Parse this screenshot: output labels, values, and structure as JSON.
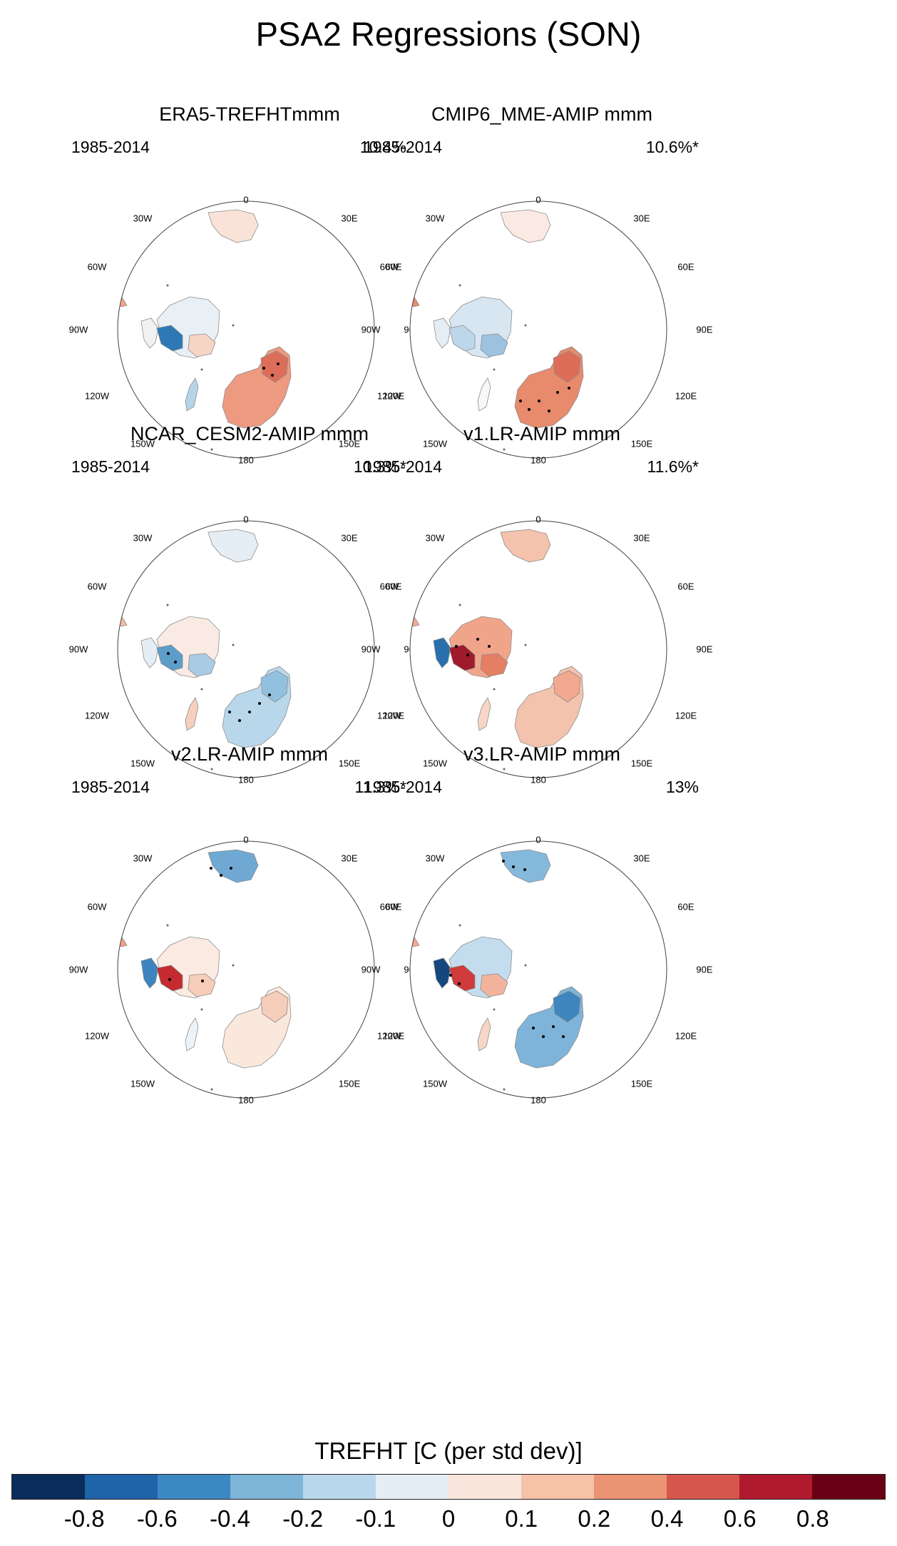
{
  "title": "PSA2 Regressions (SON)",
  "period": "1985-2014",
  "lon_labels": [
    "0",
    "30E",
    "60E",
    "90E",
    "120E",
    "150E",
    "180",
    "150W",
    "120W",
    "90W",
    "60W",
    "30W"
  ],
  "panels": [
    {
      "title": "ERA5-TREFHTmmm",
      "pct": "10.4%",
      "colors": {
        "sam": "#f2a488",
        "sam2": "#d6604d",
        "saf": "#f9e3d8",
        "aus": "#ee9a80",
        "aus2": "#dd6d58",
        "ant": "#e8f0f5",
        "ap": "#f1f1f1",
        "west": "#2e78b5",
        "east": "#f7d5c5",
        "nz": "#b5d4e8"
      }
    },
    {
      "title": "CMIP6_MME-AMIP  mmm",
      "pct": "10.6%*",
      "colors": {
        "sam": "#e88a6c",
        "sam2": "#d6604d",
        "saf": "#fbeae3",
        "aus": "#e88a6c",
        "aus2": "#dd6d58",
        "ant": "#d7e6f1",
        "ap": "#e6eef5",
        "west": "#bcd7ea",
        "east": "#9cc2df",
        "nz": "#f7f7f7"
      }
    },
    {
      "title": "NCAR_CESM2-AMIP  mmm",
      "pct": "10.3%*",
      "colors": {
        "sam": "#f3b9a1",
        "sam2": "#d6604d",
        "saf": "#e6eef5",
        "aus": "#b9d7eb",
        "aus2": "#92c1e0",
        "ant": "#f9ebe3",
        "ap": "#e6eef5",
        "west": "#5d9dca",
        "east": "#a9cce4",
        "nz": "#f6cfbd"
      }
    },
    {
      "title": "v1.LR-AMIP  mmm",
      "pct": "11.6%*",
      "colors": {
        "sam": "#f2ab92",
        "sam2": "#e07a5f",
        "saf": "#f4c2ad",
        "aus": "#f4c3ae",
        "aus2": "#f1a98f",
        "ant": "#f0a58b",
        "ap": "#2a6fae",
        "west": "#9f1b2c",
        "east": "#e47f64",
        "nz": "#f7d6c7"
      }
    },
    {
      "title": "v2.LR-AMIP  mmm",
      "pct": "11.3%*",
      "colors": {
        "sam": "#ef9f85",
        "sam2": "#d6604d",
        "saf": "#6fa9d3",
        "aus": "#fbe8dd",
        "aus2": "#f5cdb9",
        "ant": "#fbeae2",
        "ap": "#3d83be",
        "west": "#c42a30",
        "east": "#f5cdb9",
        "nz": "#eef3f7"
      }
    },
    {
      "title": "v3.LR-AMIP  mmm",
      "pct": "13%",
      "colors": {
        "sam": "#f2ab92",
        "sam2": "#c9e0ef",
        "saf": "#85b9dc",
        "aus": "#7fb4da",
        "aus2": "#3f85bf",
        "ant": "#c4ddee",
        "ap": "#15477f",
        "west": "#ce3b3a",
        "east": "#f2b39c",
        "nz": "#f7d6c7"
      }
    }
  ],
  "colorbar": {
    "title": "TREFHT [C (per std dev)]",
    "ticks": [
      "-0.8",
      "-0.6",
      "-0.4",
      "-0.2",
      "-0.1",
      "0",
      "0.1",
      "0.2",
      "0.4",
      "0.6",
      "0.8"
    ],
    "colors": [
      "#0b2d5b",
      "#1f63a8",
      "#3c88c2",
      "#7db5d8",
      "#b9d7ea",
      "#e6eef5",
      "#fae5dc",
      "#f6c2a8",
      "#eb9473",
      "#d6564c",
      "#b11a2e",
      "#6a0015"
    ]
  }
}
